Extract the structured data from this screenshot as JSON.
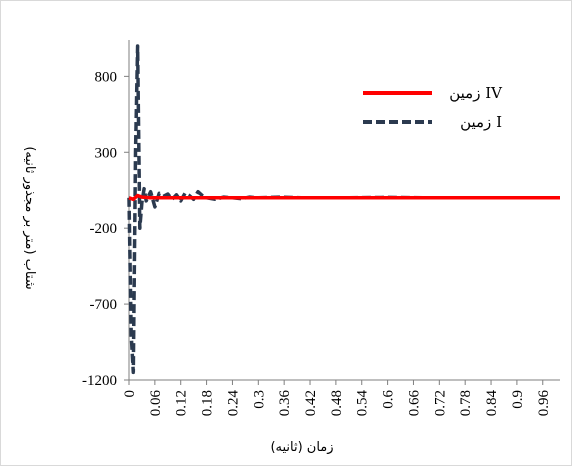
{
  "chart_data": {
    "type": "line",
    "xlabel": "زمان (ثانیه)",
    "ylabel": "شتاب (متر بر مجذور ثانیه)",
    "xlim": [
      0,
      1.0
    ],
    "ylim": [
      -1200,
      1000
    ],
    "y_ticks": [
      "800",
      "300",
      "-200",
      "-700",
      "-1200"
    ],
    "y_tick_values": [
      800,
      300,
      -200,
      -700,
      -1200
    ],
    "x_ticks": [
      "0",
      "0.06",
      "0.12",
      "0.18",
      "0.24",
      "0.3",
      "0.36",
      "0.42",
      "0.48",
      "0.54",
      "0.6",
      "0.66",
      "0.72",
      "0.78",
      "0.84",
      "0.9",
      "0.96"
    ],
    "x_tick_values": [
      0,
      0.06,
      0.12,
      0.18,
      0.24,
      0.3,
      0.36,
      0.42,
      0.48,
      0.54,
      0.6,
      0.66,
      0.72,
      0.78,
      0.84,
      0.9,
      0.96
    ],
    "legend_position": "top-right",
    "grid": false,
    "series": [
      {
        "name": "زمین IV",
        "color": "#ff0000",
        "style": "solid",
        "x": [
          0,
          0.01,
          0.02,
          0.03,
          0.05,
          0.1,
          0.2,
          0.4,
          0.6,
          0.8,
          1.0
        ],
        "y": [
          0,
          -10,
          15,
          5,
          0,
          0,
          0,
          0,
          0,
          0,
          0
        ]
      },
      {
        "name": "زمین I",
        "color": "#2b3a4f",
        "style": "dashed",
        "x": [
          0,
          0.005,
          0.01,
          0.015,
          0.02,
          0.025,
          0.03,
          0.035,
          0.04,
          0.05,
          0.06,
          0.07,
          0.08,
          0.09,
          0.1,
          0.11,
          0.12,
          0.13,
          0.14,
          0.15,
          0.16,
          0.17,
          0.18,
          0.2,
          0.22,
          0.24,
          0.26,
          0.28,
          0.3,
          0.35,
          0.4,
          0.5,
          0.6,
          0.7,
          0.8,
          0.9,
          1.0
        ],
        "y": [
          0,
          -900,
          -1150,
          300,
          1000,
          -200,
          -30,
          60,
          -20,
          40,
          -60,
          30,
          10,
          25,
          -10,
          20,
          -20,
          30,
          15,
          -10,
          40,
          15,
          0,
          -10,
          5,
          0,
          -5,
          5,
          0,
          5,
          0,
          0,
          3,
          0,
          0,
          0,
          0
        ]
      }
    ]
  }
}
